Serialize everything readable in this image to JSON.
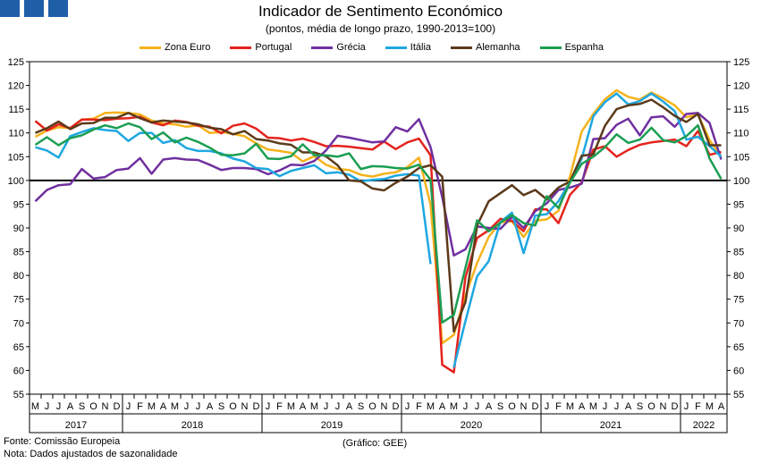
{
  "header": {
    "title": "Indicador de Sentimento Económico",
    "subtitle": "(pontos, média de longo prazo, 1990-2013=100)"
  },
  "footer": {
    "source": "Fonte: Comissão Europeia",
    "note": "Nota: Dados ajustados de sazonalidade",
    "credit": "(Gráfico: GEE)"
  },
  "chart_data": {
    "type": "line",
    "title": "Indicador de Sentimento Económico",
    "subtitle": "(pontos, média de longo prazo, 1990-2013=100)",
    "x": [
      "2017-05",
      "2017-06",
      "2017-07",
      "2017-08",
      "2017-09",
      "2017-10",
      "2017-11",
      "2017-12",
      "2018-01",
      "2018-02",
      "2018-03",
      "2018-04",
      "2018-05",
      "2018-06",
      "2018-07",
      "2018-08",
      "2018-09",
      "2018-10",
      "2018-11",
      "2018-12",
      "2019-01",
      "2019-02",
      "2019-03",
      "2019-04",
      "2019-05",
      "2019-06",
      "2019-07",
      "2019-08",
      "2019-09",
      "2019-10",
      "2019-11",
      "2019-12",
      "2020-01",
      "2020-02",
      "2020-03",
      "2020-04",
      "2020-05",
      "2020-06",
      "2020-07",
      "2020-08",
      "2020-09",
      "2020-10",
      "2020-11",
      "2020-12",
      "2021-01",
      "2021-02",
      "2021-03",
      "2021-04",
      "2021-05",
      "2021-06",
      "2021-07",
      "2021-08",
      "2021-09",
      "2021-10",
      "2021-11",
      "2021-12",
      "2022-01",
      "2022-02",
      "2022-03",
      "2022-04"
    ],
    "month_labels": [
      "M",
      "J",
      "J",
      "A",
      "S",
      "O",
      "N",
      "D",
      "J",
      "F",
      "M",
      "A",
      "M",
      "J",
      "J",
      "A",
      "S",
      "O",
      "N",
      "D",
      "J",
      "F",
      "M",
      "A",
      "M",
      "J",
      "J",
      "A",
      "S",
      "O",
      "N",
      "D",
      "J",
      "F",
      "M",
      "A",
      "M",
      "J",
      "J",
      "A",
      "S",
      "O",
      "N",
      "D",
      "J",
      "F",
      "M",
      "A",
      "M",
      "J",
      "J",
      "A",
      "S",
      "O",
      "N",
      "D",
      "J",
      "F",
      "M",
      "A"
    ],
    "years": [
      {
        "label": "2017",
        "start": 0,
        "end": 7
      },
      {
        "label": "2018",
        "start": 8,
        "end": 19
      },
      {
        "label": "2019",
        "start": 20,
        "end": 31
      },
      {
        "label": "2020",
        "start": 32,
        "end": 43
      },
      {
        "label": "2021",
        "start": 44,
        "end": 55
      },
      {
        "label": "2022",
        "start": 56,
        "end": 59
      }
    ],
    "ylim": [
      55,
      125
    ],
    "yticks": [
      55,
      60,
      65,
      70,
      75,
      80,
      85,
      90,
      95,
      100,
      105,
      110,
      115,
      120,
      125
    ],
    "reference_line": 100,
    "xlabel": "",
    "ylabel": "",
    "grid": false,
    "legend_position": "top",
    "series": [
      {
        "name": "Zona Euro",
        "color": "#f5b21b",
        "values": [
          109.2,
          110.5,
          111.2,
          111.0,
          112.8,
          113.0,
          114.2,
          114.3,
          114.2,
          113.9,
          112.6,
          112.0,
          111.8,
          111.3,
          111.6,
          110.0,
          110.2,
          109.8,
          109.3,
          107.8,
          106.5,
          106.2,
          105.8,
          104.0,
          105.1,
          103.3,
          102.4,
          102.2,
          101.2,
          100.8,
          101.4,
          101.7,
          102.8,
          104.8,
          94.9,
          65.7,
          67.5,
          75.8,
          82.6,
          88.1,
          91.2,
          91.4,
          88.1,
          91.5,
          91.8,
          93.6,
          100.9,
          110.3,
          114.0,
          117.1,
          119.0,
          117.6,
          117.0,
          118.5,
          117.3,
          115.8,
          113.3,
          113.9,
          108.5,
          105.0
        ]
      },
      {
        "name": "Portugal",
        "color": "#e4231d",
        "values": [
          112.5,
          110.5,
          111.8,
          111.0,
          112.8,
          112.8,
          112.7,
          113.0,
          113.1,
          113.4,
          112.2,
          111.6,
          112.6,
          112.3,
          111.5,
          111.3,
          109.9,
          111.5,
          112.0,
          110.9,
          109.0,
          108.9,
          108.4,
          108.8,
          108.1,
          107.2,
          107.3,
          107.1,
          106.8,
          106.5,
          108.2,
          106.6,
          108.0,
          108.8,
          105.3,
          61.2,
          59.6,
          79.6,
          87.9,
          89.5,
          91.9,
          91.5,
          89.3,
          93.9,
          93.9,
          91.0,
          97.0,
          99.6,
          106.5,
          107.2,
          105.0,
          106.4,
          107.5,
          108.0,
          108.3,
          108.6,
          107.2,
          110.4,
          105.4,
          106.0
        ]
      },
      {
        "name": "Grécia",
        "color": "#7030a0",
        "values": [
          95.6,
          98.0,
          99.0,
          99.2,
          102.4,
          100.4,
          100.7,
          102.2,
          102.5,
          104.7,
          101.4,
          104.4,
          104.7,
          104.4,
          104.3,
          103.3,
          102.2,
          102.6,
          102.6,
          102.4,
          101.3,
          102.1,
          103.3,
          103.2,
          104.1,
          106.3,
          109.4,
          109.0,
          108.5,
          108.0,
          108.2,
          111.2,
          110.3,
          112.9,
          107.0,
          96.5,
          84.2,
          85.5,
          90.3,
          90.0,
          89.8,
          92.3,
          90.0,
          93.5,
          95.2,
          98.0,
          98.5,
          99.3,
          108.7,
          108.9,
          111.7,
          113.0,
          109.5,
          113.3,
          113.5,
          111.3,
          114.0,
          114.2,
          112.1,
          104.4
        ]
      },
      {
        "name": "Itália",
        "color": "#1ea7e1",
        "values": [
          107.0,
          106.3,
          104.8,
          109.3,
          110.2,
          111.0,
          110.6,
          110.4,
          108.3,
          110.0,
          110.0,
          107.9,
          108.5,
          106.8,
          106.2,
          106.2,
          105.7,
          104.6,
          104.0,
          102.6,
          102.4,
          100.9,
          102.0,
          102.6,
          103.2,
          101.5,
          101.7,
          101.2,
          99.8,
          100.1,
          100.3,
          101.0,
          101.3,
          101.0,
          82.4,
          null,
          60.6,
          70.4,
          79.8,
          83.0,
          91.2,
          93.2,
          84.7,
          92.6,
          92.9,
          95.6,
          99.7,
          104.6,
          113.5,
          116.5,
          118.3,
          116.0,
          116.7,
          118.3,
          116.6,
          114.6,
          108.6,
          109.2,
          107.2,
          105.0
        ]
      },
      {
        "name": "Alemanha",
        "color": "#5b3a1a",
        "values": [
          110.0,
          111.0,
          112.4,
          110.8,
          112.0,
          112.1,
          113.2,
          113.2,
          114.2,
          113.1,
          112.2,
          112.6,
          112.4,
          112.2,
          111.8,
          111.1,
          110.8,
          109.7,
          110.4,
          108.7,
          108.4,
          107.8,
          107.5,
          105.9,
          105.9,
          105.1,
          103.2,
          100.0,
          99.8,
          98.3,
          97.9,
          99.5,
          100.8,
          102.6,
          103.2,
          100.8,
          68.2,
          74.4,
          90.5,
          95.6,
          97.3,
          99.0,
          96.9,
          98.0,
          96.0,
          98.5,
          99.8,
          105.2,
          105.5,
          111.5,
          115.0,
          115.8,
          116.1,
          117.0,
          115.4,
          113.6,
          112.3,
          114.0,
          107.4,
          107.4
        ]
      },
      {
        "name": "Espanha",
        "color": "#1b9e52",
        "values": [
          107.5,
          109.1,
          107.4,
          108.9,
          109.5,
          110.7,
          111.6,
          111.0,
          112.0,
          111.2,
          108.7,
          110.1,
          108.0,
          109.0,
          108.1,
          106.9,
          105.4,
          105.3,
          105.7,
          107.7,
          104.6,
          104.5,
          105.1,
          107.6,
          105.3,
          105.3,
          105.0,
          105.7,
          102.4,
          103.0,
          102.9,
          102.6,
          102.5,
          103.3,
          100.1,
          70.1,
          71.7,
          81.6,
          91.6,
          89.3,
          91.1,
          92.7,
          91.0,
          90.5,
          96.7,
          94.2,
          99.6,
          103.5,
          105.0,
          107.0,
          109.7,
          107.9,
          108.6,
          111.1,
          108.5,
          108.0,
          109.3,
          111.6,
          104.6,
          100.3
        ]
      }
    ]
  }
}
